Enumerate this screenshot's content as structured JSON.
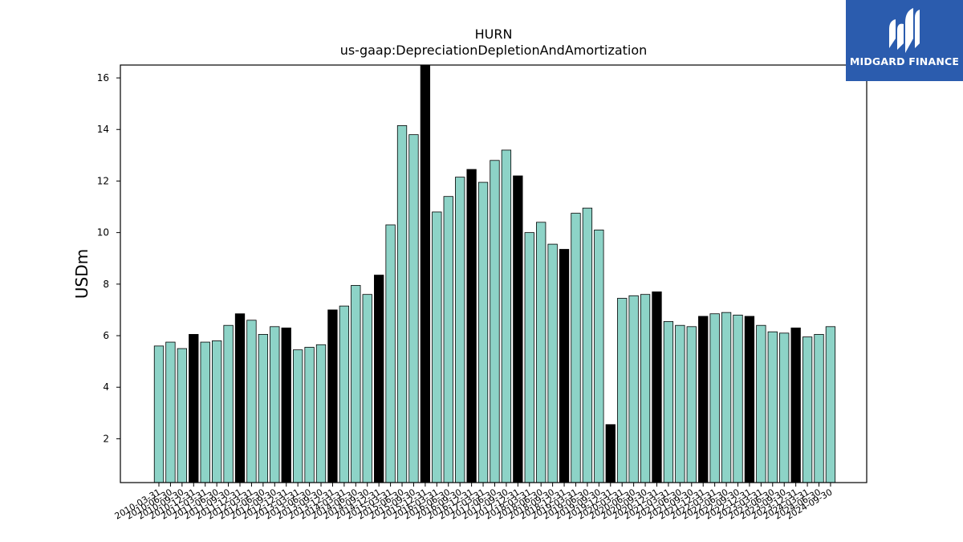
{
  "chart_data": {
    "type": "bar",
    "title": "HURN",
    "subtitle": "us-gaap:DepreciationDepletionAndAmortization",
    "ylabel": "USDm",
    "xlabel": "",
    "ylim": [
      0.3,
      16.5
    ],
    "yticks": [
      2,
      4,
      6,
      8,
      10,
      12,
      14,
      16
    ],
    "colors": {
      "quarter": "#8dd3c7",
      "year_end": "#000000",
      "edge": "#000000"
    },
    "categories": [
      "2010-03-31",
      "2010-06-30",
      "2010-09-30",
      "2010-12-31",
      "2011-03-31",
      "2011-06-30",
      "2011-09-30",
      "2011-12-31",
      "2012-03-31",
      "2012-06-30",
      "2012-09-30",
      "2012-12-31",
      "2013-03-31",
      "2013-06-30",
      "2013-09-30",
      "2013-12-31",
      "2014-03-31",
      "2014-06-30",
      "2014-09-30",
      "2014-12-31",
      "2015-03-31",
      "2015-06-30",
      "2015-09-30",
      "2015-12-31",
      "2016-03-31",
      "2016-06-30",
      "2016-09-30",
      "2016-12-31",
      "2017-03-31",
      "2017-06-30",
      "2017-09-30",
      "2017-12-31",
      "2018-03-31",
      "2018-06-30",
      "2018-09-30",
      "2018-12-31",
      "2019-03-31",
      "2019-06-30",
      "2019-09-30",
      "2019-12-31",
      "2020-03-31",
      "2020-06-30",
      "2020-09-30",
      "2020-12-31",
      "2021-03-31",
      "2021-06-30",
      "2021-09-30",
      "2021-12-31",
      "2022-03-31",
      "2022-06-30",
      "2022-09-30",
      "2022-12-31",
      "2023-03-31",
      "2023-06-30",
      "2023-09-30",
      "2023-12-31",
      "2024-03-31",
      "2024-06-30",
      "2024-09-30"
    ],
    "values": [
      5.6,
      5.75,
      5.5,
      6.05,
      5.75,
      5.8,
      6.4,
      6.85,
      6.6,
      6.05,
      6.35,
      6.3,
      5.45,
      5.55,
      5.65,
      7.0,
      7.15,
      7.95,
      7.6,
      8.35,
      10.3,
      14.15,
      13.8,
      16.5,
      10.8,
      11.4,
      12.15,
      12.45,
      11.95,
      12.8,
      13.2,
      12.2,
      10.0,
      10.4,
      9.55,
      9.35,
      10.75,
      10.95,
      10.1,
      2.55,
      7.45,
      7.55,
      7.6,
      7.7,
      6.55,
      6.4,
      6.35,
      6.75,
      6.85,
      6.9,
      6.8,
      6.75,
      6.4,
      6.15,
      6.1,
      6.3,
      5.95,
      6.05,
      6.35
    ]
  },
  "branding": {
    "logo_text": "MIDGARD FINANCE"
  }
}
